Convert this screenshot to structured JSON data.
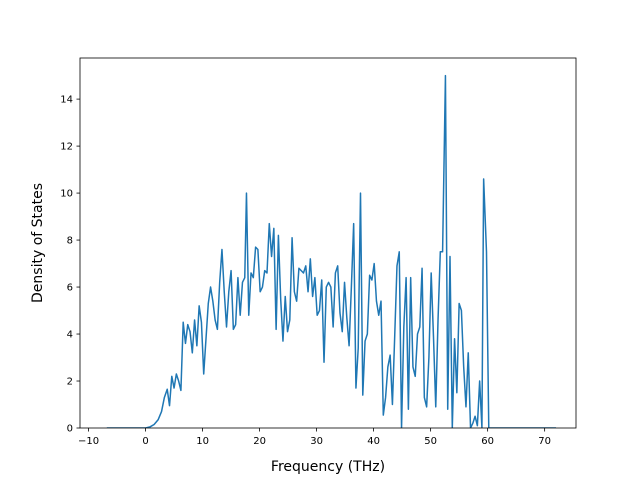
{
  "chart_data": {
    "type": "line",
    "title": "",
    "xlabel": "Frequency (THz)",
    "ylabel": "Density of States",
    "xlim": [
      -11.5,
      75.5
    ],
    "ylim": [
      0,
      15.75
    ],
    "x_ticks": [
      -10,
      0,
      10,
      20,
      30,
      40,
      50,
      60,
      70
    ],
    "x_tick_labels": [
      "−10",
      "0",
      "10",
      "20",
      "30",
      "40",
      "50",
      "60",
      "70"
    ],
    "y_ticks": [
      0,
      2,
      4,
      6,
      8,
      10,
      12,
      14
    ],
    "y_tick_labels": [
      "0",
      "2",
      "4",
      "6",
      "8",
      "10",
      "12",
      "14"
    ],
    "grid": false,
    "series": [
      {
        "color": "#1f77b4",
        "points": [
          [
            -6.8,
            0
          ],
          [
            -4,
            0
          ],
          [
            -2,
            0
          ],
          [
            0,
            0
          ],
          [
            0.8,
            0.05
          ],
          [
            1.5,
            0.15
          ],
          [
            2.2,
            0.35
          ],
          [
            2.8,
            0.7
          ],
          [
            3.3,
            1.3
          ],
          [
            3.8,
            1.65
          ],
          [
            4.2,
            0.95
          ],
          [
            4.6,
            2.2
          ],
          [
            5.0,
            1.7
          ],
          [
            5.4,
            2.3
          ],
          [
            5.8,
            2.0
          ],
          [
            6.2,
            1.6
          ],
          [
            6.6,
            4.5
          ],
          [
            7.0,
            3.6
          ],
          [
            7.4,
            4.4
          ],
          [
            7.8,
            4.1
          ],
          [
            8.2,
            3.2
          ],
          [
            8.6,
            4.6
          ],
          [
            9.0,
            3.5
          ],
          [
            9.4,
            5.2
          ],
          [
            9.8,
            4.5
          ],
          [
            10.2,
            2.3
          ],
          [
            10.6,
            3.8
          ],
          [
            11.0,
            5.3
          ],
          [
            11.4,
            6.0
          ],
          [
            11.8,
            5.4
          ],
          [
            12.2,
            4.6
          ],
          [
            12.6,
            4.2
          ],
          [
            13.0,
            6.2
          ],
          [
            13.4,
            7.6
          ],
          [
            13.8,
            5.8
          ],
          [
            14.2,
            4.3
          ],
          [
            14.6,
            5.8
          ],
          [
            15.0,
            6.7
          ],
          [
            15.4,
            4.2
          ],
          [
            15.8,
            4.4
          ],
          [
            16.2,
            6.4
          ],
          [
            16.6,
            4.8
          ],
          [
            17.0,
            6.2
          ],
          [
            17.4,
            6.4
          ],
          [
            17.7,
            10.0
          ],
          [
            18.1,
            4.8
          ],
          [
            18.5,
            6.6
          ],
          [
            18.9,
            6.4
          ],
          [
            19.3,
            7.7
          ],
          [
            19.7,
            7.6
          ],
          [
            20.1,
            5.8
          ],
          [
            20.5,
            6.0
          ],
          [
            20.9,
            6.7
          ],
          [
            21.3,
            6.6
          ],
          [
            21.7,
            8.7
          ],
          [
            22.1,
            7.3
          ],
          [
            22.5,
            8.5
          ],
          [
            22.9,
            4.2
          ],
          [
            23.3,
            8.2
          ],
          [
            23.7,
            5.5
          ],
          [
            24.1,
            3.7
          ],
          [
            24.5,
            5.6
          ],
          [
            24.9,
            4.1
          ],
          [
            25.3,
            4.6
          ],
          [
            25.7,
            8.1
          ],
          [
            26.1,
            5.8
          ],
          [
            26.5,
            5.4
          ],
          [
            26.9,
            6.8
          ],
          [
            27.3,
            6.7
          ],
          [
            27.7,
            6.6
          ],
          [
            28.1,
            6.9
          ],
          [
            28.5,
            5.8
          ],
          [
            28.9,
            7.2
          ],
          [
            29.3,
            5.6
          ],
          [
            29.7,
            6.4
          ],
          [
            30.1,
            4.8
          ],
          [
            30.5,
            5.0
          ],
          [
            30.9,
            6.3
          ],
          [
            31.3,
            2.8
          ],
          [
            31.7,
            6.0
          ],
          [
            32.1,
            6.2
          ],
          [
            32.5,
            6.0
          ],
          [
            32.9,
            4.3
          ],
          [
            33.3,
            6.6
          ],
          [
            33.7,
            6.9
          ],
          [
            34.1,
            4.9
          ],
          [
            34.5,
            4.1
          ],
          [
            34.9,
            6.2
          ],
          [
            35.3,
            4.7
          ],
          [
            35.7,
            3.5
          ],
          [
            36.1,
            6.0
          ],
          [
            36.5,
            8.7
          ],
          [
            36.9,
            1.7
          ],
          [
            37.3,
            3.4
          ],
          [
            37.7,
            10.0
          ],
          [
            38.1,
            1.4
          ],
          [
            38.5,
            3.7
          ],
          [
            38.9,
            4.0
          ],
          [
            39.3,
            6.5
          ],
          [
            39.7,
            6.3
          ],
          [
            40.1,
            7.0
          ],
          [
            40.5,
            5.4
          ],
          [
            40.9,
            4.8
          ],
          [
            41.3,
            5.4
          ],
          [
            41.7,
            0.55
          ],
          [
            42.1,
            1.3
          ],
          [
            42.5,
            2.6
          ],
          [
            42.9,
            3.1
          ],
          [
            43.3,
            1.0
          ],
          [
            43.7,
            3.9
          ],
          [
            44.1,
            6.9
          ],
          [
            44.5,
            7.5
          ],
          [
            44.9,
            0
          ],
          [
            45.3,
            4.3
          ],
          [
            45.7,
            6.4
          ],
          [
            46.1,
            0.8
          ],
          [
            46.5,
            6.4
          ],
          [
            46.9,
            2.6
          ],
          [
            47.3,
            2.2
          ],
          [
            47.7,
            4.0
          ],
          [
            48.1,
            4.3
          ],
          [
            48.5,
            6.8
          ],
          [
            48.9,
            1.3
          ],
          [
            49.3,
            0.9
          ],
          [
            49.7,
            3.0
          ],
          [
            50.1,
            6.6
          ],
          [
            50.5,
            3.9
          ],
          [
            50.9,
            0.9
          ],
          [
            51.3,
            4.6
          ],
          [
            51.7,
            7.5
          ],
          [
            52.1,
            7.5
          ],
          [
            52.6,
            15.0
          ],
          [
            53.0,
            0.8
          ],
          [
            53.4,
            7.3
          ],
          [
            53.8,
            0
          ],
          [
            54.2,
            3.8
          ],
          [
            54.6,
            1.5
          ],
          [
            55.0,
            5.3
          ],
          [
            55.4,
            5.0
          ],
          [
            55.8,
            2.6
          ],
          [
            56.2,
            0.9
          ],
          [
            56.6,
            3.2
          ],
          [
            57.0,
            0
          ],
          [
            57.4,
            0.2
          ],
          [
            57.8,
            0.5
          ],
          [
            58.2,
            0.1
          ],
          [
            58.6,
            2.0
          ],
          [
            59.0,
            0
          ],
          [
            59.3,
            10.6
          ],
          [
            59.8,
            7.5
          ],
          [
            60.2,
            0
          ],
          [
            62,
            0
          ],
          [
            65,
            0
          ],
          [
            68,
            0
          ],
          [
            72,
            0
          ]
        ]
      }
    ]
  }
}
